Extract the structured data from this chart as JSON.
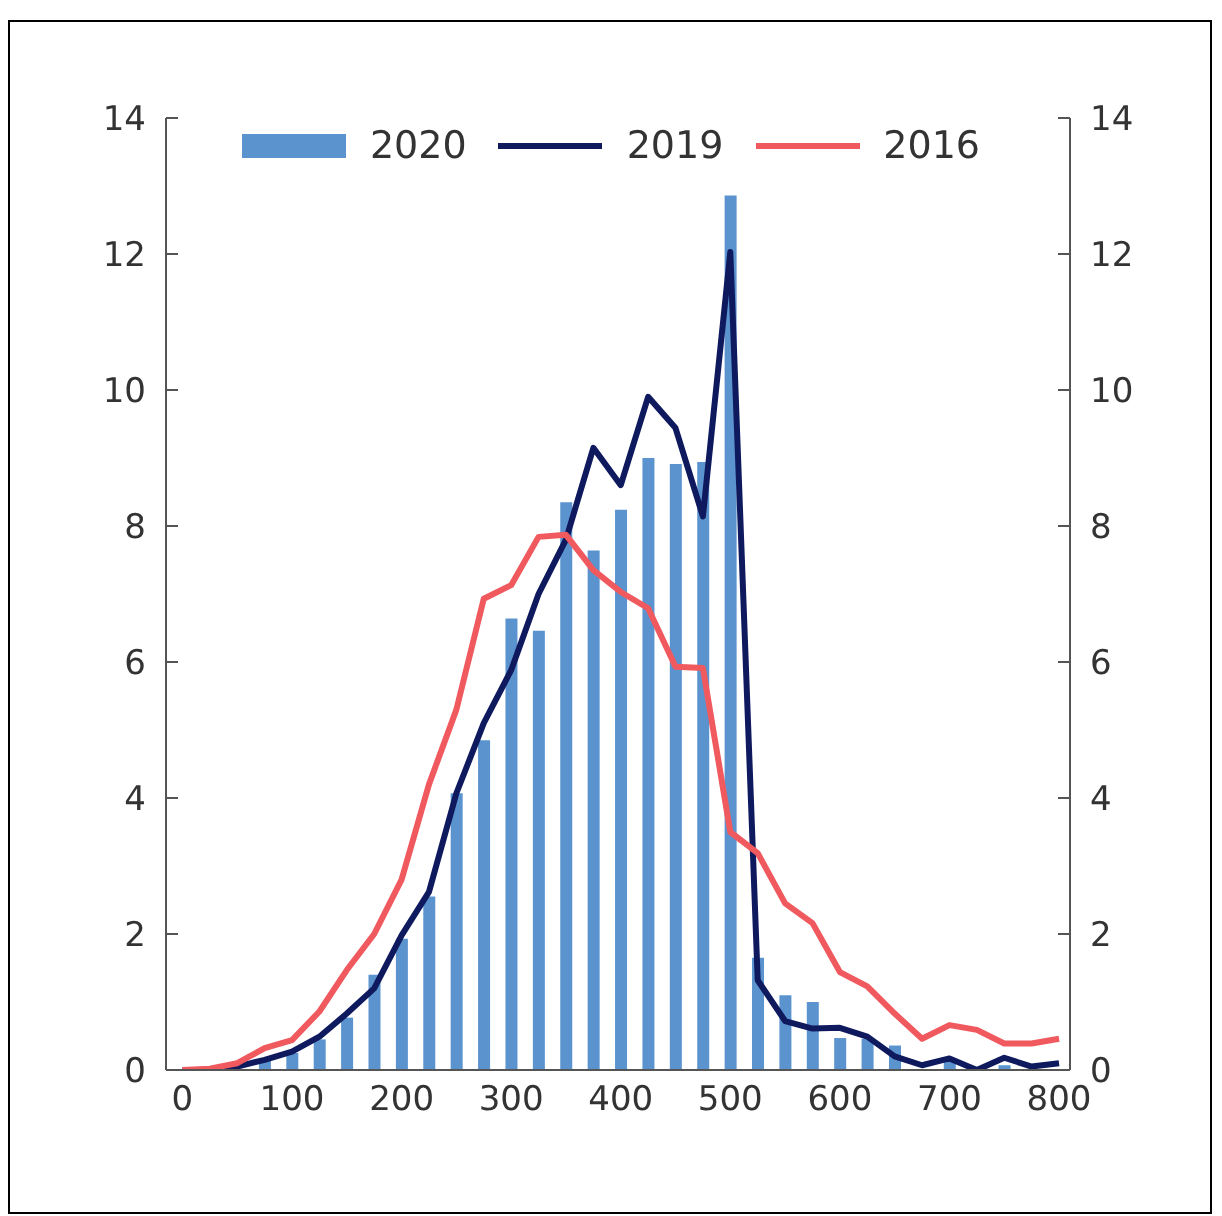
{
  "chart_data": {
    "type": "bar",
    "x": [
      0,
      25,
      50,
      75,
      100,
      125,
      150,
      175,
      200,
      225,
      250,
      275,
      300,
      325,
      350,
      375,
      400,
      425,
      450,
      475,
      500,
      525,
      550,
      575,
      600,
      625,
      650,
      675,
      700,
      725,
      750,
      775,
      800
    ],
    "series": [
      {
        "name": "2020",
        "color": "#5b93cf",
        "values": [
          0,
          0,
          null,
          0.15,
          0.25,
          0.45,
          0.77,
          1.4,
          1.93,
          2.55,
          4.07,
          4.85,
          6.64,
          6.46,
          8.35,
          7.64,
          8.24,
          9.0,
          8.91,
          8.94,
          12.86,
          1.65,
          1.1,
          1.0,
          0.47,
          0.46,
          0.36,
          null,
          0.15,
          null,
          0.07,
          null,
          null
        ]
      },
      {
        "name": "2019",
        "type": "line",
        "color": "#0f1a5e",
        "values": [
          0,
          0,
          0.05,
          0.15,
          0.27,
          0.49,
          0.83,
          1.2,
          1.98,
          2.62,
          4.07,
          5.1,
          5.88,
          7.0,
          7.8,
          9.15,
          8.6,
          9.9,
          9.44,
          8.14,
          12.03,
          1.32,
          0.72,
          0.61,
          0.62,
          0.49,
          0.2,
          0.07,
          0.17,
          0,
          0.18,
          0.05,
          0.1
        ]
      },
      {
        "name": "2016",
        "type": "line",
        "color": "#f0595e",
        "values": [
          0,
          0.02,
          0.1,
          0.32,
          0.44,
          0.86,
          1.47,
          2.0,
          2.8,
          4.2,
          5.3,
          6.93,
          7.13,
          7.84,
          7.87,
          7.35,
          7.03,
          6.79,
          5.93,
          5.91,
          3.5,
          3.19,
          2.45,
          2.16,
          1.44,
          1.23,
          0.83,
          0.46,
          0.66,
          0.59,
          0.39,
          0.39,
          0.46
        ]
      }
    ],
    "xlim": [
      -15,
      810
    ],
    "xticks": [
      0,
      100,
      200,
      300,
      400,
      500,
      600,
      700,
      800
    ],
    "ylim": [
      0,
      14
    ],
    "yticks": [
      0,
      2,
      4,
      6,
      8,
      10,
      12,
      14
    ],
    "y2lim": [
      0,
      14
    ],
    "y2ticks": [
      0,
      2,
      4,
      6,
      8,
      10,
      12,
      14
    ],
    "grid": false,
    "legend": "top",
    "marker": "none",
    "line_style": "solid"
  }
}
